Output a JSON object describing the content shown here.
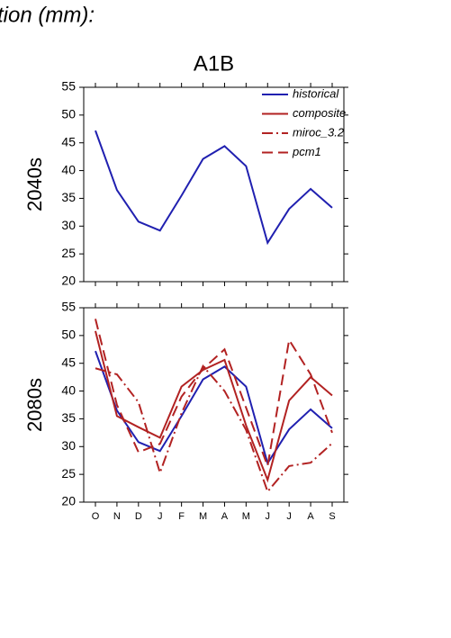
{
  "header": {
    "title": "tion (mm):"
  },
  "chart_data": [
    {
      "type": "line",
      "title": "A1B",
      "ylabel": "2040s",
      "ylim": [
        20,
        55
      ],
      "yticks": [
        20,
        25,
        30,
        35,
        40,
        45,
        50,
        55
      ],
      "series": [
        {
          "name": "historical",
          "color": "#2020b0",
          "style": "solid",
          "values": [
            47.2,
            36.5,
            30.8,
            29.2,
            35.5,
            42.1,
            44.4,
            40.8,
            27.0,
            33.1,
            36.7,
            33.3
          ]
        }
      ]
    },
    {
      "type": "line",
      "ylabel": "2080s",
      "ylim": [
        20,
        55
      ],
      "yticks": [
        20,
        25,
        30,
        35,
        40,
        45,
        50,
        55
      ],
      "categories": [
        "O",
        "N",
        "D",
        "J",
        "F",
        "M",
        "A",
        "M",
        "J",
        "J",
        "A",
        "S"
      ],
      "legend": "upper right",
      "series": [
        {
          "name": "historical",
          "color": "#2020b0",
          "style": "solid",
          "values": [
            47.2,
            36.5,
            30.8,
            29.2,
            35.5,
            42.1,
            44.4,
            40.8,
            27.0,
            33.1,
            36.7,
            33.3
          ]
        },
        {
          "name": "composite",
          "color": "#b22222",
          "style": "solid",
          "values": [
            50.8,
            35.5,
            33.5,
            31.6,
            40.8,
            43.8,
            45.6,
            33.8,
            24.0,
            38.3,
            42.5,
            39.2
          ]
        },
        {
          "name": "miroc_3.2",
          "color": "#b22222",
          "style": "dashdot",
          "values": [
            44.1,
            43.0,
            38.0,
            25.3,
            36.0,
            44.5,
            40.0,
            33.0,
            21.9,
            26.5,
            27.1,
            30.6
          ]
        },
        {
          "name": "pcm1",
          "color": "#b22222",
          "style": "dashed",
          "values": [
            53.0,
            37.5,
            29.0,
            30.5,
            39.0,
            44.0,
            47.5,
            37.0,
            26.5,
            49.2,
            43.0,
            32.5
          ]
        }
      ]
    }
  ]
}
